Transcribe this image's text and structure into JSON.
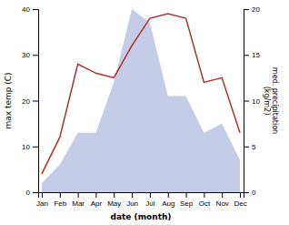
{
  "chart_data": {
    "type": "line",
    "categories": [
      "Jan",
      "Feb",
      "Mar",
      "Apr",
      "May",
      "Jun",
      "Jul",
      "Aug",
      "Sep",
      "Oct",
      "Nov",
      "Dec"
    ],
    "series": [
      {
        "type": "area",
        "color": "#c5cce8",
        "values": [
          2,
          6,
          13,
          13,
          24,
          40,
          37,
          21,
          21,
          13,
          15,
          7
        ]
      },
      {
        "type": "line",
        "color": "#b03030",
        "values": [
          4,
          12,
          28,
          26,
          25,
          32,
          38,
          39,
          38,
          24,
          25,
          13
        ]
      }
    ],
    "xlabel": "date (month)",
    "ylabel": "max temp (C)",
    "y2label": "med. precipitation\n(kg/m2)",
    "ylim": [
      0,
      40
    ],
    "yticks": [
      0,
      10,
      20,
      30,
      40
    ],
    "y2lim": [
      0,
      20
    ],
    "y2ticks": [
      0,
      5,
      10,
      15,
      20
    ],
    "grid": false
  }
}
